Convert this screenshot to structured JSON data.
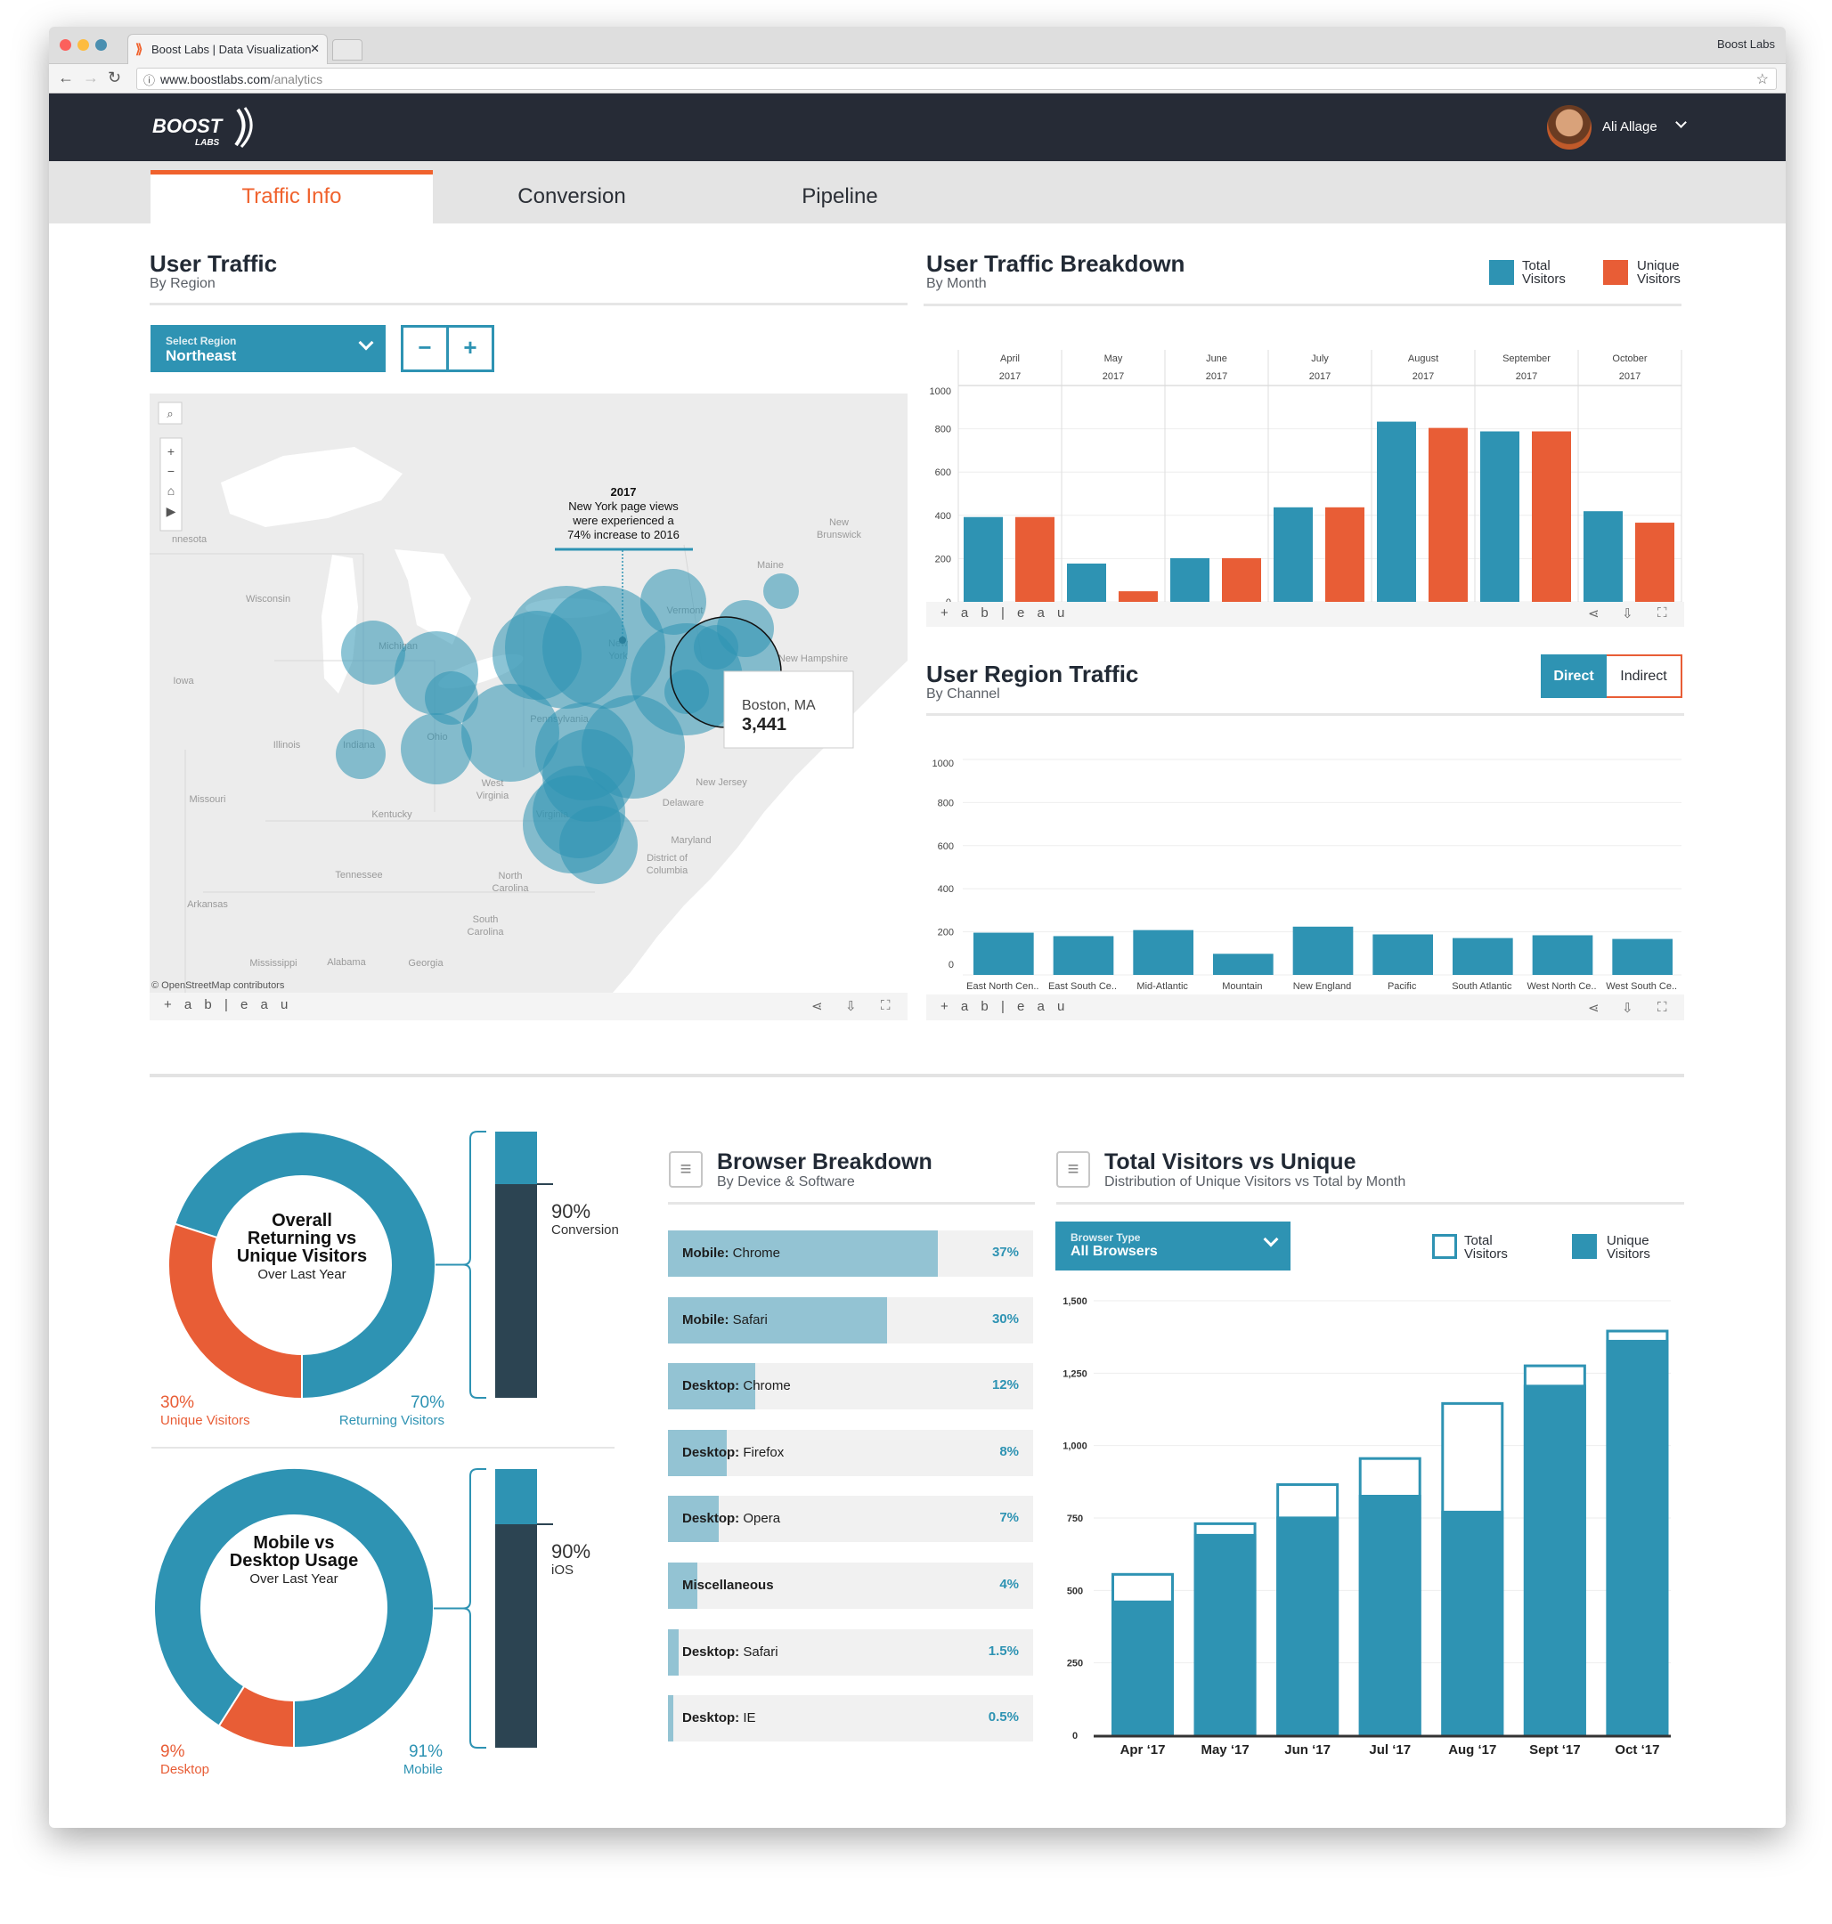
{
  "browser": {
    "tab_title": "Boost Labs | Data Visualization",
    "profile_name": "Boost Labs",
    "url_host": "www.boostlabs.com",
    "url_path": "/analytics"
  },
  "header": {
    "logo_text": "BOOST LABS",
    "user_name": "Ali Allage"
  },
  "nav": {
    "tabs": [
      {
        "label": "Traffic Info",
        "active": true
      },
      {
        "label": "Conversion",
        "active": false
      },
      {
        "label": "Pipeline",
        "active": false
      }
    ]
  },
  "colors": {
    "teal": "#2e93b3",
    "orange": "#e85d36",
    "dark": "#2c4452",
    "light_teal": "#93c3d3"
  },
  "user_traffic": {
    "title": "User Traffic",
    "subtitle": "By Region",
    "select_label": "Select Region",
    "select_value": "Northeast",
    "zoom_out": "−",
    "zoom_in": "+",
    "map": {
      "annotation_year": "2017",
      "annotation_lines": [
        "New York page views",
        "were experienced a",
        "74% increase to 2016"
      ],
      "tooltip_place": "Boston, MA",
      "tooltip_value": "3,441",
      "attribution": "© OpenStreetMap contributors",
      "place_labels": [
        "nnesota",
        "Wisconsin",
        "Michigan",
        "Iowa",
        "Illinois",
        "Indiana",
        "Ohio",
        "Pennsylvania",
        "New",
        "York",
        "Vermont",
        "Maine",
        "New",
        "Brunswick",
        "New Hampshire",
        "Missouri",
        "Kentucky",
        "West",
        "Virginia",
        "New Jersey",
        "Delaware",
        "Maryland",
        "District of",
        "Columbia",
        "Virginia",
        "Tennessee",
        "North",
        "Carolina",
        "Arkansas",
        "South",
        "Carolina",
        "Mississippi",
        "Alabama",
        "Georgia"
      ]
    },
    "tableau_logo": "+ a b | e a u"
  },
  "traffic_breakdown": {
    "title": "User Traffic Breakdown",
    "subtitle": "By Month",
    "legend": [
      {
        "label1": "Total",
        "label2": "Visitors"
      },
      {
        "label1": "Unique",
        "label2": "Visitors"
      }
    ],
    "tableau_logo": "+ a b | e a u"
  },
  "region_traffic": {
    "title": "User Region Traffic",
    "subtitle": "By Channel",
    "toggle": [
      {
        "label": "Direct",
        "active": true
      },
      {
        "label": "Indirect",
        "active": false
      }
    ],
    "tableau_logo": "+ a b | e a u"
  },
  "donuts": [
    {
      "title_lines": [
        "Overall",
        "Returning vs",
        "Unique Visitors"
      ],
      "subtitle": "Over Last Year",
      "left_pct": "30%",
      "left_label": "Unique Visitors",
      "left_value": 30,
      "right_pct": "70%",
      "right_label": "Returning Visitors",
      "right_value": 70,
      "bar_pct": "90%",
      "bar_label": "Conversion"
    },
    {
      "title_lines": [
        "Mobile vs",
        "Desktop Usage"
      ],
      "subtitle": "Over Last Year",
      "left_pct": "9%",
      "left_label": "Desktop",
      "left_value": 9,
      "right_pct": "91%",
      "right_label": "Mobile",
      "right_value": 91,
      "bar_pct": "90%",
      "bar_label": "iOS"
    }
  ],
  "browser_breakdown": {
    "title": "Browser Breakdown",
    "subtitle": "By Device & Software",
    "rows": [
      {
        "prefix": "Mobile:",
        "name": "Chrome",
        "pct": "37%",
        "value": 37
      },
      {
        "prefix": "Mobile:",
        "name": "Safari",
        "pct": "30%",
        "value": 30
      },
      {
        "prefix": "Desktop:",
        "name": "Chrome",
        "pct": "12%",
        "value": 12
      },
      {
        "prefix": "Desktop:",
        "name": "Firefox",
        "pct": "8%",
        "value": 8
      },
      {
        "prefix": "Desktop:",
        "name": "Opera",
        "pct": "7%",
        "value": 7
      },
      {
        "prefix": "Miscellaneous",
        "name": "",
        "pct": "4%",
        "value": 4
      },
      {
        "prefix": "Desktop:",
        "name": "Safari",
        "pct": "1.5%",
        "value": 1.5
      },
      {
        "prefix": "Desktop:",
        "name": "IE",
        "pct": "0.5%",
        "value": 0.5
      }
    ]
  },
  "total_vs_unique": {
    "title": "Total Visitors vs Unique",
    "subtitle": "Distribution of Unique Visitors vs Total by Month",
    "select_label": "Browser Type",
    "select_value": "All Browsers",
    "legend": [
      {
        "label1": "Total",
        "label2": "Visitors"
      },
      {
        "label1": "Unique",
        "label2": "Visitors"
      }
    ]
  },
  "chart_data": [
    {
      "type": "bar",
      "title": "User Traffic Breakdown",
      "categories": [
        [
          "April",
          "2017"
        ],
        [
          "May",
          "2017"
        ],
        [
          "June",
          "2017"
        ],
        [
          "July",
          "2017"
        ],
        [
          "August",
          "2017"
        ],
        [
          "September",
          "2017"
        ],
        [
          "October",
          "2017"
        ]
      ],
      "series": [
        {
          "name": "Total Visitors",
          "values": [
            392,
            177,
            202,
            437,
            833,
            788,
            419
          ]
        },
        {
          "name": "Unique Visitors",
          "values": [
            392,
            49,
            202,
            437,
            804,
            788,
            366
          ]
        }
      ],
      "yticks": [
        "0",
        "200",
        "400",
        "600",
        "800",
        "1000"
      ],
      "ylim": [
        0,
        1000
      ],
      "grid": true,
      "legend": "top-right"
    },
    {
      "type": "bar",
      "title": "User Region Traffic",
      "categories": [
        "East North Cen..",
        "East South Ce..",
        "Mid-Atlantic",
        "Mountain",
        "New England",
        "Pacific",
        "South Atlantic",
        "West North Ce..",
        "West South Ce.."
      ],
      "values": [
        196,
        180,
        208,
        98,
        224,
        188,
        171,
        184,
        167
      ],
      "yticks": [
        "0",
        "200",
        "400",
        "600",
        "800",
        "1000"
      ],
      "ylim": [
        0,
        1000
      ],
      "grid": true
    },
    {
      "type": "bar",
      "title": "Total Visitors vs Unique",
      "categories": [
        "Apr ‘17",
        "May ‘17",
        "Jun ‘17",
        "Jul ‘17",
        "Aug ‘17",
        "Sept ‘17",
        "Oct ‘17"
      ],
      "series": [
        {
          "name": "Total Visitors",
          "values": [
            560,
            735,
            870,
            960,
            1150,
            1280,
            1400
          ]
        },
        {
          "name": "Unique Visitors",
          "values": [
            465,
            695,
            755,
            830,
            775,
            1210,
            1365
          ]
        }
      ],
      "yticks": [
        "0",
        "250",
        "500",
        "750",
        "1,000",
        "1,250",
        "1,500"
      ],
      "ylim": [
        0,
        1500
      ],
      "grid": true,
      "legend": "top-right"
    }
  ]
}
